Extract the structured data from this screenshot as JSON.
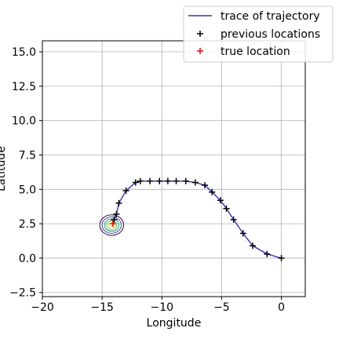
{
  "chart_data": {
    "type": "line",
    "title": "",
    "xlabel": "Longitude",
    "ylabel": "Latitude",
    "xlim": [
      -20,
      2
    ],
    "ylim": [
      -2.8,
      15.8
    ],
    "xticks": [
      -20,
      -15,
      -10,
      -5,
      0
    ],
    "xtick_labels": [
      "−20",
      "−15",
      "−10",
      "−5",
      "0"
    ],
    "yticks": [
      -2.5,
      0.0,
      2.5,
      5.0,
      7.5,
      10.0,
      12.5,
      15.0
    ],
    "ytick_labels": [
      "−2.5",
      "0.0",
      "2.5",
      "5.0",
      "7.5",
      "10.0",
      "12.5",
      "15.0"
    ],
    "grid": true,
    "legend_position": "top-right",
    "colors": {
      "trace": "#3333cc",
      "previous": "#000000",
      "true_location": "#ff0000",
      "grid": "#b0b0b0",
      "contours": [
        "#440154",
        "#3b528b",
        "#21918c",
        "#5ec962",
        "#fde725"
      ]
    },
    "series": [
      {
        "name": "trace of trajectory",
        "kind": "line",
        "x": [
          0,
          -1.2,
          -2.4,
          -3.2,
          -4.0,
          -4.6,
          -5.1,
          -5.8,
          -6.4,
          -7.2,
          -8.0,
          -8.8,
          -9.5,
          -10.2,
          -11.0,
          -11.8,
          -12.2,
          -13.0,
          -13.6,
          -13.8,
          -14.0
        ],
        "y": [
          0.0,
          0.3,
          0.9,
          1.8,
          2.8,
          3.6,
          4.2,
          4.8,
          5.3,
          5.5,
          5.6,
          5.6,
          5.6,
          5.6,
          5.6,
          5.6,
          5.5,
          4.9,
          4.0,
          3.2,
          2.8
        ]
      },
      {
        "name": "previous locations",
        "kind": "marker",
        "marker": "+",
        "x": [
          0,
          -1.2,
          -2.4,
          -3.2,
          -4.0,
          -4.6,
          -5.1,
          -5.8,
          -6.4,
          -7.2,
          -8.0,
          -8.8,
          -9.5,
          -10.2,
          -11.0,
          -11.8,
          -12.2,
          -13.0,
          -13.6,
          -13.8,
          -14.0
        ],
        "y": [
          0.0,
          0.3,
          0.9,
          1.8,
          2.8,
          3.6,
          4.2,
          4.8,
          5.3,
          5.5,
          5.6,
          5.6,
          5.6,
          5.6,
          5.6,
          5.6,
          5.5,
          4.9,
          4.0,
          3.2,
          2.8
        ]
      },
      {
        "name": "true location",
        "kind": "marker",
        "marker": "+",
        "x": [
          -14.1
        ],
        "y": [
          2.5
        ]
      }
    ],
    "contour": {
      "kind": "density",
      "center": [
        -14.2,
        2.4
      ],
      "levels_rx": [
        1.0,
        0.8,
        0.6,
        0.42,
        0.25
      ],
      "levels_ry": [
        0.75,
        0.6,
        0.45,
        0.32,
        0.18
      ]
    }
  }
}
